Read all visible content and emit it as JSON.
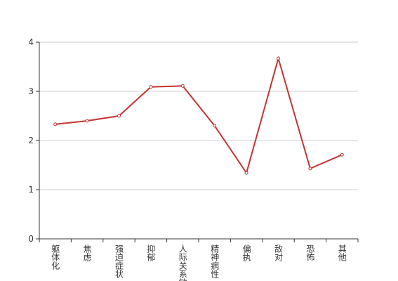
{
  "chart_data": {
    "type": "line",
    "categories": [
      "躯体化",
      "焦虑",
      "强迫症状",
      "抑郁",
      "人际关系敏感",
      "精神病性",
      "偏执",
      "敌对",
      "恐怖",
      "其他"
    ],
    "values": [
      2.33,
      2.4,
      2.5,
      3.09,
      3.11,
      2.3,
      1.34,
      3.67,
      1.43,
      1.71
    ],
    "color": "#c23531",
    "ylim": [
      0,
      4
    ],
    "yticks": [
      0,
      1,
      2,
      3,
      4
    ],
    "grid": true
  }
}
